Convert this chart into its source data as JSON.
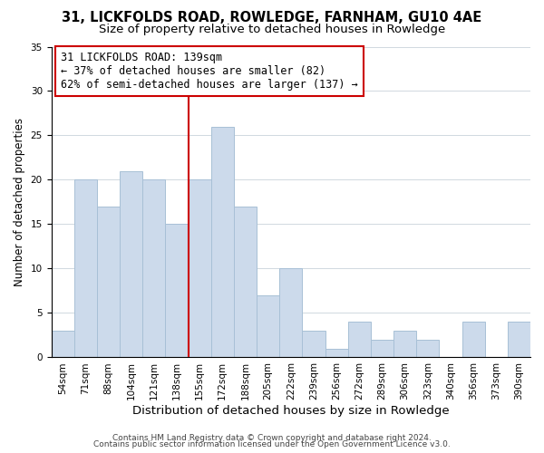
{
  "title1": "31, LICKFOLDS ROAD, ROWLEDGE, FARNHAM, GU10 4AE",
  "title2": "Size of property relative to detached houses in Rowledge",
  "xlabel": "Distribution of detached houses by size in Rowledge",
  "ylabel": "Number of detached properties",
  "bar_labels": [
    "54sqm",
    "71sqm",
    "88sqm",
    "104sqm",
    "121sqm",
    "138sqm",
    "155sqm",
    "172sqm",
    "188sqm",
    "205sqm",
    "222sqm",
    "239sqm",
    "256sqm",
    "272sqm",
    "289sqm",
    "306sqm",
    "323sqm",
    "340sqm",
    "356sqm",
    "373sqm",
    "390sqm"
  ],
  "bar_values": [
    3,
    20,
    17,
    21,
    20,
    15,
    20,
    26,
    17,
    7,
    10,
    3,
    1,
    4,
    2,
    3,
    2,
    0,
    4,
    0,
    4
  ],
  "bar_color": "#ccdaeb",
  "bar_edge_color": "#a8c0d6",
  "highlight_bar_index": 5,
  "highlight_line_color": "#cc0000",
  "annotation_box_edge": "#cc0000",
  "annotation_lines": [
    "31 LICKFOLDS ROAD: 139sqm",
    "← 37% of detached houses are smaller (82)",
    "62% of semi-detached houses are larger (137) →"
  ],
  "ylim": [
    0,
    35
  ],
  "yticks": [
    0,
    5,
    10,
    15,
    20,
    25,
    30,
    35
  ],
  "footer1": "Contains HM Land Registry data © Crown copyright and database right 2024.",
  "footer2": "Contains public sector information licensed under the Open Government Licence v3.0.",
  "title1_fontsize": 10.5,
  "title2_fontsize": 9.5,
  "xlabel_fontsize": 9.5,
  "ylabel_fontsize": 8.5,
  "tick_fontsize": 7.5,
  "annotation_fontsize": 8.5,
  "footer_fontsize": 6.5
}
